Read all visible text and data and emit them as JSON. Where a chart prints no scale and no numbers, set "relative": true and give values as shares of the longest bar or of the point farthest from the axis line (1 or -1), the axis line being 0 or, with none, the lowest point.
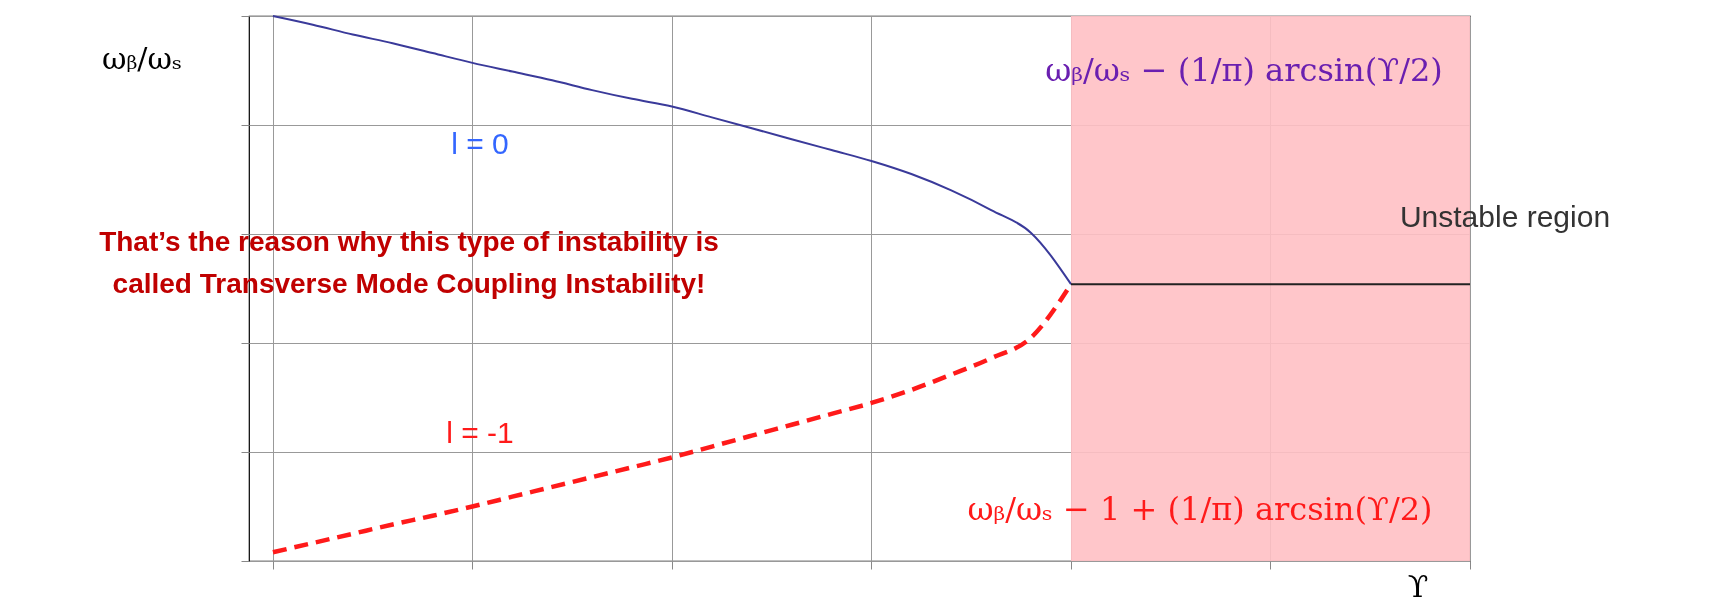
{
  "chart_data": {
    "type": "line",
    "relative": true,
    "grid": true,
    "xlabel": "ϒ",
    "ylabel": "ωᵦ/ωₛ",
    "categories": [
      null,
      null,
      null,
      null,
      null,
      null,
      null,
      null,
      null,
      null,
      null,
      null,
      null,
      null,
      null,
      null,
      null,
      null,
      null,
      null,
      null,
      null,
      null,
      null,
      null,
      null,
      null,
      null,
      null,
      null,
      null
    ],
    "series": [
      {
        "color": "#3a3a9a",
        "line_style": "solid",
        "values": [
          1.0,
          0.984,
          0.966,
          0.95,
          0.932,
          0.914,
          0.898,
          0.882,
          0.864,
          0.848,
          0.834,
          0.814,
          0.794,
          0.774,
          0.754,
          0.734,
          0.71,
          0.68,
          0.644,
          0.602,
          0.508,
          null,
          null,
          null,
          null,
          null,
          null,
          null,
          null,
          null,
          null
        ]
      },
      {
        "color": "#ff1a1a",
        "line_style": "dashed",
        "values": [
          0.016,
          0.033,
          0.05,
          0.067,
          0.083,
          0.1,
          0.118,
          0.136,
          0.154,
          0.172,
          0.19,
          0.21,
          0.23,
          0.25,
          0.27,
          0.29,
          0.314,
          0.342,
          0.372,
          0.41,
          0.508,
          null,
          null,
          null,
          null,
          null,
          null,
          null,
          null,
          null,
          null
        ]
      },
      {
        "color": "#222222",
        "line_style": "solid",
        "values": [
          null,
          null,
          null,
          null,
          null,
          null,
          null,
          null,
          null,
          null,
          null,
          null,
          null,
          null,
          null,
          null,
          null,
          null,
          null,
          null,
          0.508,
          0.508,
          0.508,
          0.508,
          0.508,
          0.508,
          0.508,
          0.508,
          0.508,
          0.508,
          0.508
        ]
      }
    ],
    "annotations": [
      "Unstable region",
      "l = 0",
      "l = -1",
      "ωᵦ/ωₛ − (1/π) arcsin(ϒ/2)",
      "ωᵦ/ωₛ − 1 + (1/π) arcsin(ϒ/2)",
      "That’s the reason why this type of instability is\ncalled Transverse Mode Coupling Instability!"
    ]
  }
}
